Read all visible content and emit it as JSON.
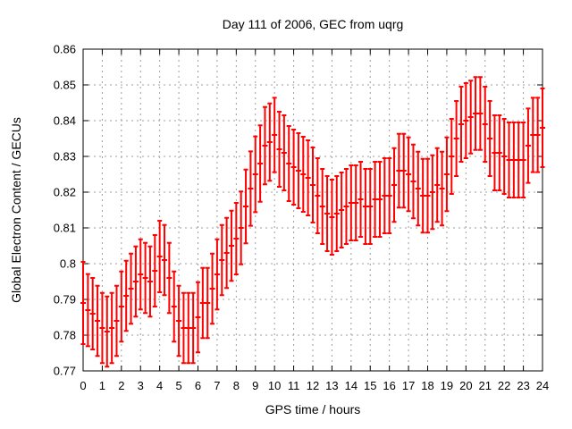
{
  "figure": {
    "background": "#ffffff"
  },
  "chart_data": {
    "type": "errorbar",
    "title": "Day 111 of 2006, GEC from uqrg",
    "xlabel": "GPS time / hours",
    "ylabel": "Global Electron Content / GECUs",
    "xlim": [
      0,
      24
    ],
    "ylim": [
      0.77,
      0.86
    ],
    "grid": true,
    "legend": "none",
    "xticks": [
      0,
      1,
      2,
      3,
      4,
      5,
      6,
      7,
      8,
      9,
      10,
      11,
      12,
      13,
      14,
      15,
      16,
      17,
      18,
      19,
      20,
      21,
      22,
      23,
      24
    ],
    "xtick_labels": [
      "0",
      "1",
      "2",
      "3",
      "4",
      "5",
      "6",
      "7",
      "8",
      "9",
      "10",
      "11",
      "12",
      "13",
      "14",
      "15",
      "16",
      "17",
      "18",
      "19",
      "20",
      "21",
      "22",
      "23",
      "24"
    ],
    "yticks": [
      0.77,
      0.78,
      0.79,
      0.8,
      0.81,
      0.82,
      0.83,
      0.84,
      0.85,
      0.86
    ],
    "ytick_labels": [
      "0.77",
      "0.78",
      "0.79",
      "0.8",
      "0.81",
      "0.82",
      "0.83",
      "0.84",
      "0.85",
      "0.86"
    ],
    "colors": {
      "series": "#ff0000",
      "grid": "#9e9e9e",
      "axis": "#000000",
      "text": "#000000"
    },
    "x": [
      0,
      0.25,
      0.5,
      0.75,
      1,
      1.25,
      1.5,
      1.75,
      2,
      2.25,
      2.5,
      2.75,
      3,
      3.25,
      3.5,
      3.75,
      4,
      4.25,
      4.5,
      4.75,
      5,
      5.25,
      5.5,
      5.75,
      6,
      6.25,
      6.5,
      6.75,
      7,
      7.25,
      7.5,
      7.75,
      8,
      8.25,
      8.5,
      8.75,
      9,
      9.25,
      9.5,
      9.75,
      10,
      10.25,
      10.5,
      10.75,
      11,
      11.25,
      11.5,
      11.75,
      12,
      12.25,
      12.5,
      12.75,
      13,
      13.25,
      13.5,
      13.75,
      14,
      14.25,
      14.5,
      14.75,
      15,
      15.25,
      15.5,
      15.75,
      16,
      16.25,
      16.5,
      16.75,
      17,
      17.25,
      17.5,
      17.75,
      18,
      18.25,
      18.5,
      18.75,
      19,
      19.25,
      19.5,
      19.75,
      20,
      20.25,
      20.5,
      20.75,
      21,
      21.25,
      21.5,
      21.75,
      22,
      22.25,
      22.5,
      22.75,
      23,
      23.25,
      23.5,
      23.75,
      24
    ],
    "y": [
      0.789,
      0.787,
      0.786,
      0.784,
      0.782,
      0.781,
      0.782,
      0.784,
      0.788,
      0.791,
      0.793,
      0.795,
      0.797,
      0.796,
      0.795,
      0.798,
      0.802,
      0.801,
      0.796,
      0.788,
      0.784,
      0.782,
      0.782,
      0.782,
      0.785,
      0.789,
      0.789,
      0.793,
      0.797,
      0.801,
      0.803,
      0.805,
      0.807,
      0.81,
      0.816,
      0.821,
      0.825,
      0.828,
      0.833,
      0.834,
      0.836,
      0.832,
      0.831,
      0.828,
      0.827,
      0.826,
      0.825,
      0.824,
      0.822,
      0.819,
      0.816,
      0.814,
      0.813,
      0.814,
      0.815,
      0.816,
      0.817,
      0.817,
      0.818,
      0.816,
      0.816,
      0.818,
      0.818,
      0.819,
      0.819,
      0.822,
      0.826,
      0.826,
      0.825,
      0.823,
      0.821,
      0.819,
      0.819,
      0.82,
      0.822,
      0.821,
      0.825,
      0.83,
      0.835,
      0.839,
      0.84,
      0.841,
      0.842,
      0.842,
      0.839,
      0.835,
      0.831,
      0.831,
      0.83,
      0.829,
      0.829,
      0.829,
      0.829,
      0.833,
      0.836,
      0.836,
      0.838
    ],
    "yerr": [
      0.0115,
      0.0101,
      0.01,
      0.0098,
      0.0098,
      0.0098,
      0.0098,
      0.0098,
      0.0098,
      0.0098,
      0.0098,
      0.0098,
      0.0098,
      0.0098,
      0.0098,
      0.01,
      0.01,
      0.0098,
      0.0098,
      0.0098,
      0.0098,
      0.0098,
      0.0098,
      0.0098,
      0.0098,
      0.0098,
      0.0098,
      0.0098,
      0.0098,
      0.0098,
      0.0098,
      0.0098,
      0.01,
      0.0102,
      0.0103,
      0.0104,
      0.0106,
      0.0107,
      0.0108,
      0.0108,
      0.0104,
      0.0105,
      0.0105,
      0.0105,
      0.0105,
      0.0105,
      0.0105,
      0.0105,
      0.0105,
      0.0105,
      0.0105,
      0.0105,
      0.0105,
      0.0105,
      0.0105,
      0.0105,
      0.0105,
      0.0105,
      0.0105,
      0.0105,
      0.0105,
      0.0105,
      0.0105,
      0.0105,
      0.0105,
      0.0103,
      0.0103,
      0.0103,
      0.0103,
      0.0103,
      0.0103,
      0.0103,
      0.0103,
      0.0103,
      0.0103,
      0.0103,
      0.0103,
      0.0105,
      0.0105,
      0.0105,
      0.0105,
      0.0102,
      0.0102,
      0.0102,
      0.0105,
      0.0105,
      0.0105,
      0.0105,
      0.0105,
      0.0105,
      0.0105,
      0.0105,
      0.0105,
      0.0104,
      0.0104,
      0.0104,
      0.011
    ]
  }
}
